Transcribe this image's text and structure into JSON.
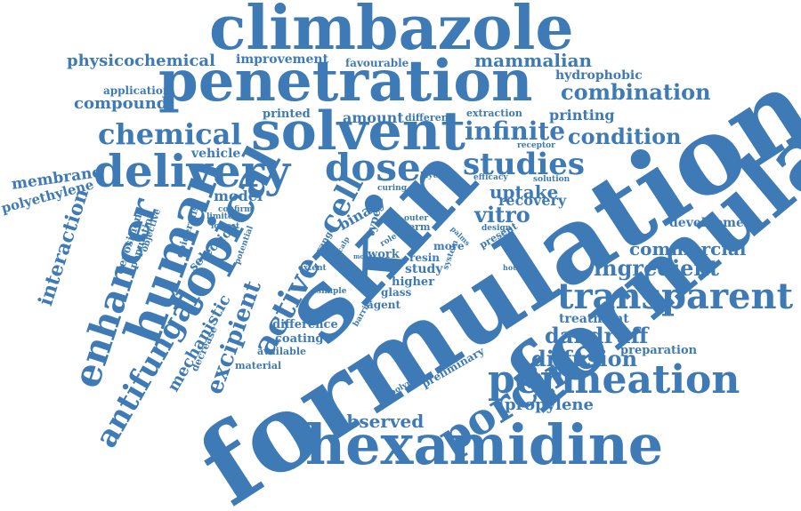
{
  "palette": {
    "word": "#3d7ab6",
    "background": "#ffffff"
  },
  "words": {
    "formulation": "formulation",
    "skin": "skin",
    "climbazole": "climbazole",
    "penetration": "penetration",
    "hexamidine": "hexamidine",
    "solvent": "solvent",
    "delivery": "delivery",
    "topical": "topical",
    "human": "human",
    "enhancer": "enhancer",
    "transparent": "transparent",
    "permeation": "permeation",
    "porcine": "porcine",
    "antifungal": "antifungal",
    "active": "active",
    "dose": "dose",
    "cell": "cell",
    "studies": "studies",
    "chemical": "chemical",
    "combination": "combination",
    "infinite": "infinite",
    "condition": "condition",
    "ingredient": "ingredient",
    "dandruff": "dandruff",
    "diffusion": "diffusion",
    "commercial": "commercial",
    "vitro": "vitro",
    "uptake": "uptake",
    "excipient": "excipient",
    "mechanistic": "mechanistic",
    "interaction": "interaction",
    "observed": "observed",
    "propylene": "propylene",
    "mammalian": "mammalian",
    "physicochemical": "physicochemical",
    "membrane": "membrane",
    "polyethylene": "polyethylene",
    "compound": "compound",
    "application": "application",
    "improvement": "improvement",
    "favourable": "favourable",
    "hydrophobic": "hydrophobic",
    "printing": "printing",
    "printed": "printed",
    "amount": "amount",
    "different": "different",
    "extraction": "extraction",
    "vehicle": "vehicle",
    "model": "model",
    "recovery": "recovery",
    "development": "development",
    "binary": "binary",
    "treatment": "treatment",
    "preparation": "preparation",
    "selection": "selection",
    "deposition": "deposition",
    "population": "population",
    "objective": "objective",
    "epidermis": "epidermis",
    "confirm": "confirm",
    "limited": "limited",
    "lowest": "lowest",
    "potential": "potential",
    "range": "range",
    "type": "type",
    "role": "role",
    "curing": "curing",
    "layer": "layer",
    "efficacy": "efficacy",
    "solution": "solution",
    "receptor": "receptor",
    "design": "design",
    "present": "present",
    "palms": "palms",
    "outer": "outer",
    "term": "term",
    "proc": "proc",
    "work": "work",
    "result": "result",
    "more": "more",
    "resin": "resin",
    "study": "study",
    "higher": "higher",
    "system": "system",
    "glass": "glass",
    "agent": "agent",
    "simple": "simple",
    "extent": "extent",
    "scalp": "scalp",
    "mod": "mod",
    "barrier": "barrier",
    "difference": "difference",
    "coating": "coating",
    "available": "available",
    "decrease": "decrease",
    "material": "material",
    "polymer": "polymer",
    "preliminary": "preliminary",
    "house": "house"
  }
}
